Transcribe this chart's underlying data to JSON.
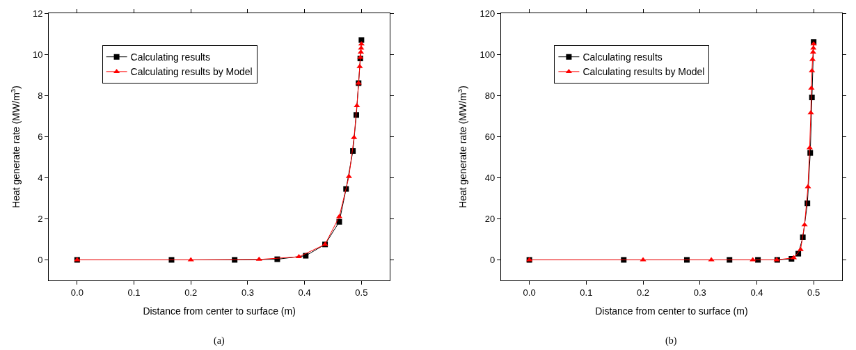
{
  "chart_data": [
    {
      "type": "line",
      "xlabel": "Distance from center to surface (m)",
      "ylabel": "Heat generate rate (MW/m$^{3}$)",
      "annotations": [
        "(a)"
      ],
      "xlim": [
        -0.05,
        0.55
      ],
      "ylim": [
        -1,
        12
      ],
      "xticks": [
        {
          "value": 0,
          "label": "0.0"
        },
        0.1,
        0.2,
        0.3,
        0.4,
        0.5
      ],
      "yticks": [
        0,
        2,
        4,
        6,
        8,
        10,
        12
      ],
      "legend": "top",
      "line_style": "solid",
      "series": [
        {
          "name": "Calculating results",
          "color": "#000000",
          "marker": "square",
          "x": [
            0,
            0.166,
            0.277,
            0.352,
            0.402,
            0.436,
            0.461,
            0.473,
            0.485,
            0.491,
            0.495,
            0.498,
            0.5
          ],
          "values": [
            0,
            0,
            0,
            0.03,
            0.2,
            0.75,
            1.85,
            3.45,
            5.3,
            7.05,
            8.6,
            9.8,
            10.7
          ]
        },
        {
          "name": "Calculating results by Model",
          "color": "#ff0000",
          "marker": "triangle",
          "x": [
            0,
            0.2,
            0.32,
            0.39,
            0.436,
            0.461,
            0.478,
            0.487,
            0.492,
            0.495,
            0.497,
            0.498,
            0.499,
            0.4995,
            0.5
          ],
          "values": [
            0,
            0,
            0.02,
            0.15,
            0.75,
            2.1,
            4.05,
            5.95,
            7.5,
            8.6,
            9.4,
            9.85,
            10.1,
            10.3,
            10.5
          ]
        }
      ]
    },
    {
      "type": "line",
      "xlabel": "Distance from center to surface (m)",
      "ylabel": "Heat generate rate (MW/m$^{3}$)",
      "annotations": [
        "(b)"
      ],
      "xlim": [
        -0.05,
        0.55
      ],
      "ylim": [
        -10,
        120
      ],
      "xticks": [
        {
          "value": 0,
          "label": "0.0"
        },
        0.1,
        0.2,
        0.3,
        0.4,
        0.5
      ],
      "yticks": [
        0,
        20,
        40,
        60,
        80,
        100,
        120
      ],
      "legend": "top",
      "line_style": "solid",
      "series": [
        {
          "name": "Calculating results",
          "color": "#000000",
          "marker": "square",
          "x": [
            0,
            0.166,
            0.277,
            0.352,
            0.402,
            0.436,
            0.461,
            0.473,
            0.481,
            0.489,
            0.494,
            0.497,
            0.5
          ],
          "values": [
            0,
            0,
            0,
            0,
            0,
            0,
            0.5,
            3,
            11,
            27.5,
            52,
            79,
            106
          ]
        },
        {
          "name": "Calculating results by Model",
          "color": "#ff0000",
          "marker": "triangle",
          "x": [
            0,
            0.2,
            0.32,
            0.393,
            0.435,
            0.465,
            0.477,
            0.484,
            0.49,
            0.493,
            0.495,
            0.496,
            0.497,
            0.498,
            0.499,
            0.4995,
            0.5
          ],
          "values": [
            0,
            0,
            0,
            0,
            0,
            1,
            5,
            17,
            35.5,
            54.5,
            71.5,
            83.5,
            92,
            97.5,
            101,
            103,
            105
          ]
        }
      ]
    }
  ]
}
